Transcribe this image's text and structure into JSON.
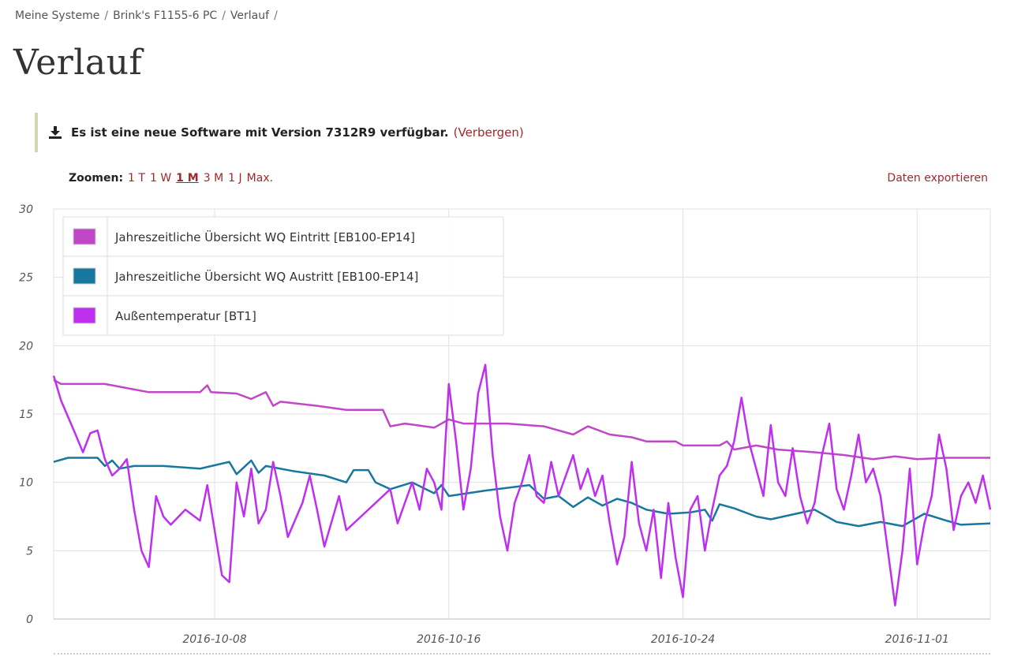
{
  "breadcrumb": {
    "items": [
      "Meine Systeme",
      "Brink's F1155-6 PC",
      "Verlauf"
    ],
    "separator": "/"
  },
  "page_title": "Verlauf",
  "notice": {
    "icon": "download-icon",
    "text": "Es ist eine neue Software mit Version 7312R9 verfügbar.",
    "hide_label": "(Verbergen)"
  },
  "zoom": {
    "label": "Zoomen:",
    "options": [
      "1 T",
      "1 W",
      "1 M",
      "3 M",
      "1 J",
      "Max."
    ],
    "active": "1 M"
  },
  "export_label": "Daten exportieren",
  "chart_data": {
    "type": "line",
    "title": "",
    "xlabel": "",
    "ylabel": "",
    "ylim": [
      0,
      30
    ],
    "yticks": [
      0,
      5,
      10,
      15,
      20,
      25,
      30
    ],
    "xlim": [
      "2016-10-02T12:00",
      "2016-11-03T12:00"
    ],
    "xticks": [
      "2016-10-08",
      "2016-10-16",
      "2016-10-24",
      "2016-11-01"
    ],
    "grid": true,
    "legend_position": "top-left",
    "series": [
      {
        "name": "Jahreszeitliche Übersicht WQ Eintritt [EB100-EP14]",
        "color": "#c047c8",
        "points": [
          [
            "2016-10-02T12:00",
            17.5
          ],
          [
            "2016-10-02T18:00",
            17.2
          ],
          [
            "2016-10-04T06:00",
            17.2
          ],
          [
            "2016-10-05T00:00",
            16.9
          ],
          [
            "2016-10-05T18:00",
            16.6
          ],
          [
            "2016-10-07T12:00",
            16.6
          ],
          [
            "2016-10-07T18:00",
            17.1
          ],
          [
            "2016-10-07T21:00",
            16.6
          ],
          [
            "2016-10-08T18:00",
            16.5
          ],
          [
            "2016-10-09T06:00",
            16.1
          ],
          [
            "2016-10-09T18:00",
            16.6
          ],
          [
            "2016-10-10T00:00",
            15.6
          ],
          [
            "2016-10-10T06:00",
            15.9
          ],
          [
            "2016-10-11T12:00",
            15.6
          ],
          [
            "2016-10-12T12:00",
            15.3
          ],
          [
            "2016-10-13T18:00",
            15.3
          ],
          [
            "2016-10-14T00:00",
            14.1
          ],
          [
            "2016-10-14T12:00",
            14.3
          ],
          [
            "2016-10-15T12:00",
            14.0
          ],
          [
            "2016-10-16T00:00",
            14.6
          ],
          [
            "2016-10-16T12:00",
            14.3
          ],
          [
            "2016-10-18T00:00",
            14.3
          ],
          [
            "2016-10-19T06:00",
            14.1
          ],
          [
            "2016-10-20T06:00",
            13.5
          ],
          [
            "2016-10-20T18:00",
            14.1
          ],
          [
            "2016-10-21T12:00",
            13.5
          ],
          [
            "2016-10-22T06:00",
            13.3
          ],
          [
            "2016-10-22T18:00",
            13.0
          ],
          [
            "2016-10-23T18:00",
            13.0
          ],
          [
            "2016-10-24T00:00",
            12.7
          ],
          [
            "2016-10-25T06:00",
            12.7
          ],
          [
            "2016-10-25T12:00",
            13.0
          ],
          [
            "2016-10-25T18:00",
            12.4
          ],
          [
            "2016-10-26T12:00",
            12.7
          ],
          [
            "2016-10-27T06:00",
            12.4
          ],
          [
            "2016-10-28T12:00",
            12.2
          ],
          [
            "2016-10-29T12:00",
            12.0
          ],
          [
            "2016-10-30T12:00",
            11.7
          ],
          [
            "2016-10-31T06:00",
            11.9
          ],
          [
            "2016-11-01T00:00",
            11.7
          ],
          [
            "2016-11-02T00:00",
            11.8
          ],
          [
            "2016-11-03T12:00",
            11.8
          ]
        ]
      },
      {
        "name": "Jahreszeitliche Übersicht WQ Austritt [EB100-EP14]",
        "color": "#18779e",
        "points": [
          [
            "2016-10-02T12:00",
            11.5
          ],
          [
            "2016-10-03T00:00",
            11.8
          ],
          [
            "2016-10-04T00:00",
            11.8
          ],
          [
            "2016-10-04T06:00",
            11.2
          ],
          [
            "2016-10-04T12:00",
            11.6
          ],
          [
            "2016-10-04T18:00",
            11.0
          ],
          [
            "2016-10-05T06:00",
            11.2
          ],
          [
            "2016-10-06T06:00",
            11.2
          ],
          [
            "2016-10-07T12:00",
            11.0
          ],
          [
            "2016-10-08T12:00",
            11.5
          ],
          [
            "2016-10-08T18:00",
            10.6
          ],
          [
            "2016-10-09T06:00",
            11.6
          ],
          [
            "2016-10-09T12:00",
            10.7
          ],
          [
            "2016-10-09T18:00",
            11.2
          ],
          [
            "2016-10-10T18:00",
            10.8
          ],
          [
            "2016-10-11T18:00",
            10.5
          ],
          [
            "2016-10-12T12:00",
            10.0
          ],
          [
            "2016-10-12T18:00",
            10.9
          ],
          [
            "2016-10-13T06:00",
            10.9
          ],
          [
            "2016-10-13T12:00",
            10.0
          ],
          [
            "2016-10-14T00:00",
            9.5
          ],
          [
            "2016-10-14T18:00",
            10.0
          ],
          [
            "2016-10-15T12:00",
            9.2
          ],
          [
            "2016-10-15T18:00",
            9.8
          ],
          [
            "2016-10-16T00:00",
            9.0
          ],
          [
            "2016-10-17T06:00",
            9.4
          ],
          [
            "2016-10-18T18:00",
            9.8
          ],
          [
            "2016-10-19T06:00",
            8.8
          ],
          [
            "2016-10-19T18:00",
            9.0
          ],
          [
            "2016-10-20T06:00",
            8.2
          ],
          [
            "2016-10-20T18:00",
            8.9
          ],
          [
            "2016-10-21T06:00",
            8.3
          ],
          [
            "2016-10-21T18:00",
            8.8
          ],
          [
            "2016-10-22T06:00",
            8.5
          ],
          [
            "2016-10-22T18:00",
            8.0
          ],
          [
            "2016-10-23T12:00",
            7.7
          ],
          [
            "2016-10-24T06:00",
            7.8
          ],
          [
            "2016-10-24T18:00",
            8.0
          ],
          [
            "2016-10-25T00:00",
            7.2
          ],
          [
            "2016-10-25T06:00",
            8.4
          ],
          [
            "2016-10-25T18:00",
            8.1
          ],
          [
            "2016-10-26T12:00",
            7.5
          ],
          [
            "2016-10-27T00:00",
            7.3
          ],
          [
            "2016-10-28T12:00",
            8.0
          ],
          [
            "2016-10-29T06:00",
            7.1
          ],
          [
            "2016-10-30T00:00",
            6.8
          ],
          [
            "2016-10-30T18:00",
            7.1
          ],
          [
            "2016-10-31T12:00",
            6.8
          ],
          [
            "2016-11-01T06:00",
            7.7
          ],
          [
            "2016-11-02T00:00",
            7.2
          ],
          [
            "2016-11-02T12:00",
            6.9
          ],
          [
            "2016-11-03T12:00",
            7.0
          ]
        ]
      },
      {
        "name": "Außentemperatur [BT1]",
        "color": "#bf2ff0",
        "points": [
          [
            "2016-10-02T12:00",
            17.8
          ],
          [
            "2016-10-02T18:00",
            16.0
          ],
          [
            "2016-10-03T06:00",
            13.5
          ],
          [
            "2016-10-03T12:00",
            12.2
          ],
          [
            "2016-10-03T18:00",
            13.6
          ],
          [
            "2016-10-04T00:00",
            13.8
          ],
          [
            "2016-10-04T06:00",
            11.7
          ],
          [
            "2016-10-04T12:00",
            10.5
          ],
          [
            "2016-10-04T18:00",
            11.0
          ],
          [
            "2016-10-05T00:00",
            11.7
          ],
          [
            "2016-10-05T06:00",
            8.0
          ],
          [
            "2016-10-05T12:00",
            5.0
          ],
          [
            "2016-10-05T18:00",
            3.8
          ],
          [
            "2016-10-06T00:00",
            9.0
          ],
          [
            "2016-10-06T06:00",
            7.5
          ],
          [
            "2016-10-06T12:00",
            6.9
          ],
          [
            "2016-10-07T00:00",
            8.0
          ],
          [
            "2016-10-07T12:00",
            7.2
          ],
          [
            "2016-10-07T18:00",
            9.8
          ],
          [
            "2016-10-08T00:00",
            6.5
          ],
          [
            "2016-10-08T06:00",
            3.2
          ],
          [
            "2016-10-08T12:00",
            2.7
          ],
          [
            "2016-10-08T18:00",
            10.0
          ],
          [
            "2016-10-09T00:00",
            7.5
          ],
          [
            "2016-10-09T06:00",
            11.0
          ],
          [
            "2016-10-09T12:00",
            7.0
          ],
          [
            "2016-10-09T18:00",
            8.0
          ],
          [
            "2016-10-10T00:00",
            11.5
          ],
          [
            "2016-10-10T06:00",
            9.0
          ],
          [
            "2016-10-10T12:00",
            6.0
          ],
          [
            "2016-10-11T00:00",
            8.5
          ],
          [
            "2016-10-11T06:00",
            10.5
          ],
          [
            "2016-10-11T12:00",
            8.0
          ],
          [
            "2016-10-11T18:00",
            5.3
          ],
          [
            "2016-10-12T06:00",
            9.0
          ],
          [
            "2016-10-12T12:00",
            6.5
          ],
          [
            "2016-10-13T00:00",
            7.5
          ],
          [
            "2016-10-13T12:00",
            8.5
          ],
          [
            "2016-10-14T00:00",
            9.5
          ],
          [
            "2016-10-14T06:00",
            7.0
          ],
          [
            "2016-10-14T12:00",
            8.5
          ],
          [
            "2016-10-14T18:00",
            10.0
          ],
          [
            "2016-10-15T00:00",
            8.0
          ],
          [
            "2016-10-15T06:00",
            11.0
          ],
          [
            "2016-10-15T12:00",
            10.0
          ],
          [
            "2016-10-15T18:00",
            8.0
          ],
          [
            "2016-10-16T00:00",
            17.2
          ],
          [
            "2016-10-16T06:00",
            13.0
          ],
          [
            "2016-10-16T12:00",
            8.0
          ],
          [
            "2016-10-16T18:00",
            11.0
          ],
          [
            "2016-10-17T00:00",
            16.5
          ],
          [
            "2016-10-17T06:00",
            18.6
          ],
          [
            "2016-10-17T12:00",
            12.0
          ],
          [
            "2016-10-17T18:00",
            7.5
          ],
          [
            "2016-10-18T00:00",
            5.0
          ],
          [
            "2016-10-18T06:00",
            8.5
          ],
          [
            "2016-10-18T12:00",
            10.0
          ],
          [
            "2016-10-18T18:00",
            12.0
          ],
          [
            "2016-10-19T00:00",
            9.0
          ],
          [
            "2016-10-19T06:00",
            8.5
          ],
          [
            "2016-10-19T12:00",
            11.5
          ],
          [
            "2016-10-19T18:00",
            9.0
          ],
          [
            "2016-10-20T06:00",
            12.0
          ],
          [
            "2016-10-20T12:00",
            9.5
          ],
          [
            "2016-10-20T18:00",
            11.0
          ],
          [
            "2016-10-21T00:00",
            9.0
          ],
          [
            "2016-10-21T06:00",
            10.5
          ],
          [
            "2016-10-21T12:00",
            7.0
          ],
          [
            "2016-10-21T18:00",
            4.0
          ],
          [
            "2016-10-22T00:00",
            6.0
          ],
          [
            "2016-10-22T06:00",
            11.5
          ],
          [
            "2016-10-22T12:00",
            7.0
          ],
          [
            "2016-10-22T18:00",
            5.0
          ],
          [
            "2016-10-23T00:00",
            8.0
          ],
          [
            "2016-10-23T06:00",
            3.0
          ],
          [
            "2016-10-23T12:00",
            8.5
          ],
          [
            "2016-10-23T18:00",
            4.5
          ],
          [
            "2016-10-24T00:00",
            1.6
          ],
          [
            "2016-10-24T06:00",
            8.0
          ],
          [
            "2016-10-24T12:00",
            9.0
          ],
          [
            "2016-10-24T18:00",
            5.0
          ],
          [
            "2016-10-25T00:00",
            8.0
          ],
          [
            "2016-10-25T06:00",
            10.5
          ],
          [
            "2016-10-25T12:00",
            11.2
          ],
          [
            "2016-10-25T18:00",
            13.0
          ],
          [
            "2016-10-26T00:00",
            16.2
          ],
          [
            "2016-10-26T06:00",
            13.0
          ],
          [
            "2016-10-26T12:00",
            11.0
          ],
          [
            "2016-10-26T18:00",
            9.0
          ],
          [
            "2016-10-27T00:00",
            14.2
          ],
          [
            "2016-10-27T06:00",
            10.0
          ],
          [
            "2016-10-27T12:00",
            9.0
          ],
          [
            "2016-10-27T18:00",
            12.5
          ],
          [
            "2016-10-28T00:00",
            9.0
          ],
          [
            "2016-10-28T06:00",
            7.0
          ],
          [
            "2016-10-28T12:00",
            8.5
          ],
          [
            "2016-10-28T18:00",
            12.0
          ],
          [
            "2016-10-29T00:00",
            14.3
          ],
          [
            "2016-10-29T06:00",
            9.5
          ],
          [
            "2016-10-29T12:00",
            8.0
          ],
          [
            "2016-10-29T18:00",
            10.5
          ],
          [
            "2016-10-30T00:00",
            13.5
          ],
          [
            "2016-10-30T06:00",
            10.0
          ],
          [
            "2016-10-30T12:00",
            11.0
          ],
          [
            "2016-10-30T18:00",
            9.0
          ],
          [
            "2016-10-31T00:00",
            5.0
          ],
          [
            "2016-10-31T06:00",
            1.0
          ],
          [
            "2016-10-31T12:00",
            5.0
          ],
          [
            "2016-10-31T18:00",
            11.0
          ],
          [
            "2016-11-01T00:00",
            4.0
          ],
          [
            "2016-11-01T06:00",
            7.0
          ],
          [
            "2016-11-01T12:00",
            9.0
          ],
          [
            "2016-11-01T18:00",
            13.5
          ],
          [
            "2016-11-02T00:00",
            11.0
          ],
          [
            "2016-11-02T06:00",
            6.5
          ],
          [
            "2016-11-02T12:00",
            9.0
          ],
          [
            "2016-11-02T18:00",
            10.0
          ],
          [
            "2016-11-03T00:00",
            8.5
          ],
          [
            "2016-11-03T06:00",
            10.5
          ],
          [
            "2016-11-03T12:00",
            8.0
          ]
        ]
      }
    ]
  }
}
